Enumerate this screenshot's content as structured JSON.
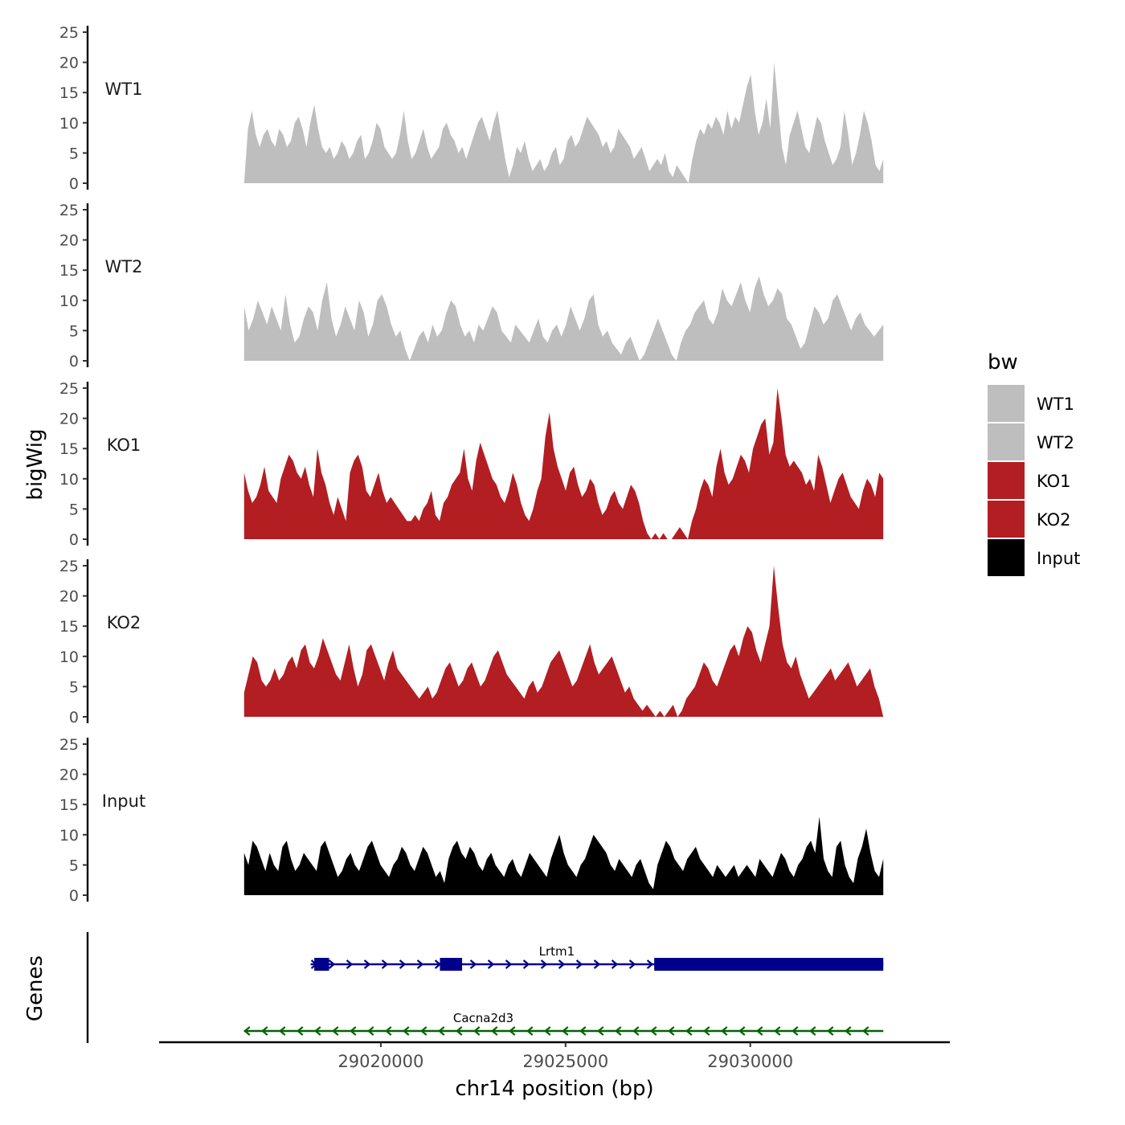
{
  "chart_data": {
    "type": "area",
    "subtype": "genome-browser-tracks",
    "ylabel": "bigWig",
    "xlabel": "chr14 position (bp)",
    "xlim": [
      29014000,
      29035400
    ],
    "x_ticks": [
      29020000,
      29025000,
      29030000
    ],
    "x_tick_labels": [
      "29020000",
      "29025000",
      "29030000"
    ],
    "ylim": [
      0,
      25
    ],
    "y_ticks": [
      0,
      5,
      10,
      15,
      20,
      25
    ],
    "y_tick_labels": [
      "0",
      "5",
      "10",
      "15",
      "20",
      "25"
    ],
    "x_range_data": [
      29016300,
      29033600
    ],
    "series": [
      {
        "name": "WT1",
        "color": "#bebebe",
        "values": [
          0,
          9,
          12,
          8,
          6,
          8,
          9,
          7,
          6,
          9,
          8,
          6,
          7,
          10,
          11,
          9,
          6,
          10,
          13,
          9,
          6,
          5,
          6,
          4,
          5,
          7,
          6,
          4,
          5,
          7,
          8,
          4,
          5,
          7,
          10,
          9,
          6,
          5,
          4,
          5,
          8,
          12,
          7,
          4,
          5,
          7,
          9,
          6,
          4,
          5,
          6,
          9,
          10,
          8,
          7,
          5,
          6,
          4,
          6,
          8,
          10,
          11,
          9,
          7,
          10,
          12,
          8,
          4,
          1,
          3,
          6,
          5,
          7,
          4,
          2,
          3,
          4,
          2,
          3,
          5,
          6,
          3,
          4,
          7,
          8,
          6,
          7,
          9,
          11,
          10,
          9,
          8,
          6,
          7,
          5,
          6,
          9,
          8,
          7,
          6,
          4,
          5,
          6,
          4,
          2,
          3,
          4,
          3,
          5,
          2,
          1,
          3,
          2,
          1,
          0,
          4,
          7,
          9,
          8,
          10,
          9,
          11,
          10,
          8,
          12,
          9,
          11,
          10,
          13,
          16,
          18,
          12,
          8,
          10,
          14,
          9,
          20,
          13,
          6,
          3,
          8,
          10,
          12,
          9,
          6,
          5,
          8,
          11,
          10,
          7,
          5,
          3,
          4,
          6,
          12,
          8,
          3,
          5,
          8,
          12,
          10,
          7,
          3,
          2,
          4
        ]
      },
      {
        "name": "WT2",
        "color": "#bebebe",
        "values": [
          9,
          5,
          7,
          10,
          8,
          6,
          9,
          7,
          5,
          11,
          6,
          3,
          4,
          7,
          9,
          8,
          5,
          10,
          13,
          7,
          4,
          6,
          9,
          7,
          5,
          10,
          8,
          4,
          6,
          10,
          11,
          9,
          6,
          4,
          5,
          2,
          0,
          2,
          4,
          5,
          3,
          6,
          4,
          5,
          8,
          10,
          9,
          6,
          4,
          5,
          3,
          6,
          5,
          7,
          9,
          8,
          5,
          4,
          3,
          6,
          5,
          4,
          3,
          5,
          7,
          4,
          3,
          5,
          6,
          4,
          6,
          9,
          7,
          5,
          7,
          10,
          11,
          6,
          4,
          5,
          3,
          2,
          1,
          3,
          4,
          2,
          0,
          1,
          3,
          5,
          7,
          5,
          3,
          1,
          0,
          3,
          5,
          6,
          8,
          9,
          10,
          7,
          6,
          8,
          12,
          10,
          9,
          11,
          13,
          10,
          8,
          12,
          14,
          11,
          9,
          10,
          12,
          11,
          7,
          6,
          4,
          2,
          3,
          6,
          9,
          8,
          6,
          7,
          10,
          11,
          9,
          7,
          5,
          7,
          8,
          6,
          5,
          4,
          5,
          6
        ]
      },
      {
        "name": "KO1",
        "color": "#b21e22",
        "values": [
          11,
          8,
          6,
          7,
          9,
          12,
          8,
          7,
          6,
          10,
          12,
          14,
          13,
          11,
          10,
          12,
          9,
          7,
          15,
          11,
          9,
          6,
          4,
          7,
          5,
          3,
          11,
          13,
          14,
          12,
          8,
          7,
          9,
          11,
          8,
          6,
          7,
          6,
          5,
          4,
          3,
          3,
          4,
          3,
          5,
          6,
          8,
          4,
          3,
          6,
          7,
          9,
          10,
          11,
          15,
          10,
          8,
          13,
          16,
          14,
          12,
          10,
          9,
          7,
          6,
          8,
          11,
          9,
          6,
          4,
          3,
          5,
          8,
          10,
          17,
          21,
          15,
          12,
          10,
          8,
          11,
          12,
          9,
          7,
          8,
          10,
          9,
          6,
          4,
          5,
          7,
          8,
          6,
          5,
          7,
          9,
          8,
          6,
          3,
          1,
          0,
          1,
          0,
          1,
          0,
          0,
          1,
          2,
          1,
          0,
          3,
          5,
          8,
          10,
          9,
          7,
          12,
          15,
          11,
          9,
          10,
          12,
          14,
          13,
          11,
          15,
          17,
          19,
          20,
          14,
          16,
          25,
          20,
          14,
          12,
          13,
          12,
          11,
          9,
          10,
          8,
          14,
          12,
          9,
          6,
          8,
          10,
          11,
          9,
          7,
          6,
          5,
          8,
          10,
          9,
          7,
          11,
          10
        ]
      },
      {
        "name": "KO2",
        "color": "#b21e22",
        "values": [
          4,
          7,
          10,
          9,
          6,
          5,
          6,
          8,
          6,
          7,
          9,
          10,
          8,
          11,
          12,
          9,
          8,
          10,
          13,
          11,
          9,
          7,
          6,
          9,
          12,
          8,
          5,
          7,
          11,
          12,
          10,
          8,
          6,
          9,
          11,
          8,
          7,
          6,
          5,
          4,
          3,
          4,
          5,
          3,
          4,
          6,
          8,
          9,
          7,
          5,
          6,
          8,
          9,
          7,
          5,
          6,
          8,
          10,
          11,
          9,
          7,
          6,
          5,
          4,
          3,
          5,
          6,
          4,
          5,
          7,
          9,
          10,
          11,
          9,
          7,
          5,
          6,
          8,
          10,
          12,
          9,
          7,
          8,
          9,
          10,
          8,
          6,
          4,
          5,
          3,
          2,
          1,
          2,
          1,
          0,
          1,
          0,
          1,
          2,
          0,
          1,
          3,
          4,
          5,
          7,
          9,
          8,
          6,
          5,
          7,
          9,
          11,
          12,
          10,
          13,
          15,
          14,
          11,
          9,
          12,
          15,
          25,
          18,
          12,
          9,
          8,
          10,
          7,
          5,
          3,
          4,
          5,
          6,
          7,
          8,
          6,
          7,
          8,
          9,
          7,
          5,
          6,
          7,
          8,
          5,
          3,
          0
        ]
      },
      {
        "name": "Input",
        "color": "#000000",
        "values": [
          7,
          5,
          9,
          8,
          6,
          4,
          7,
          5,
          4,
          8,
          9,
          6,
          4,
          5,
          7,
          6,
          5,
          4,
          8,
          9,
          7,
          5,
          3,
          4,
          6,
          7,
          5,
          4,
          6,
          8,
          9,
          7,
          5,
          4,
          3,
          5,
          6,
          8,
          7,
          5,
          4,
          6,
          8,
          7,
          5,
          3,
          4,
          2,
          6,
          8,
          9,
          7,
          6,
          8,
          7,
          5,
          4,
          6,
          7,
          5,
          4,
          3,
          5,
          6,
          4,
          3,
          5,
          7,
          6,
          5,
          4,
          3,
          6,
          8,
          10,
          7,
          5,
          4,
          3,
          5,
          6,
          8,
          10,
          9,
          8,
          7,
          5,
          4,
          6,
          5,
          4,
          3,
          5,
          6,
          4,
          2,
          1,
          5,
          7,
          9,
          8,
          6,
          5,
          4,
          6,
          7,
          8,
          6,
          5,
          4,
          3,
          5,
          4,
          3,
          4,
          5,
          3,
          4,
          5,
          4,
          3,
          6,
          5,
          4,
          3,
          5,
          7,
          6,
          4,
          3,
          5,
          6,
          8,
          9,
          7,
          13,
          6,
          4,
          3,
          8,
          9,
          5,
          3,
          2,
          6,
          8,
          11,
          7,
          4,
          3,
          6
        ]
      }
    ],
    "legend": {
      "title": "bw",
      "entries": [
        "WT1",
        "WT2",
        "KO1",
        "KO2"
      ],
      "extra_entry": "Input",
      "placement": "right"
    },
    "genes_track": {
      "title": "Genes",
      "genes": [
        {
          "name": "Lrtm1",
          "strand": "+",
          "color": "#00008b",
          "start": 29018100,
          "end": 29033600,
          "exons": [
            [
              29018200,
              29018600
            ],
            [
              29021600,
              29022200
            ],
            [
              29027400,
              29033600
            ]
          ]
        },
        {
          "name": "Cacna2d3",
          "strand": "-",
          "color": "#006400",
          "start": 29016300,
          "end": 29033600,
          "exons": []
        }
      ]
    }
  }
}
